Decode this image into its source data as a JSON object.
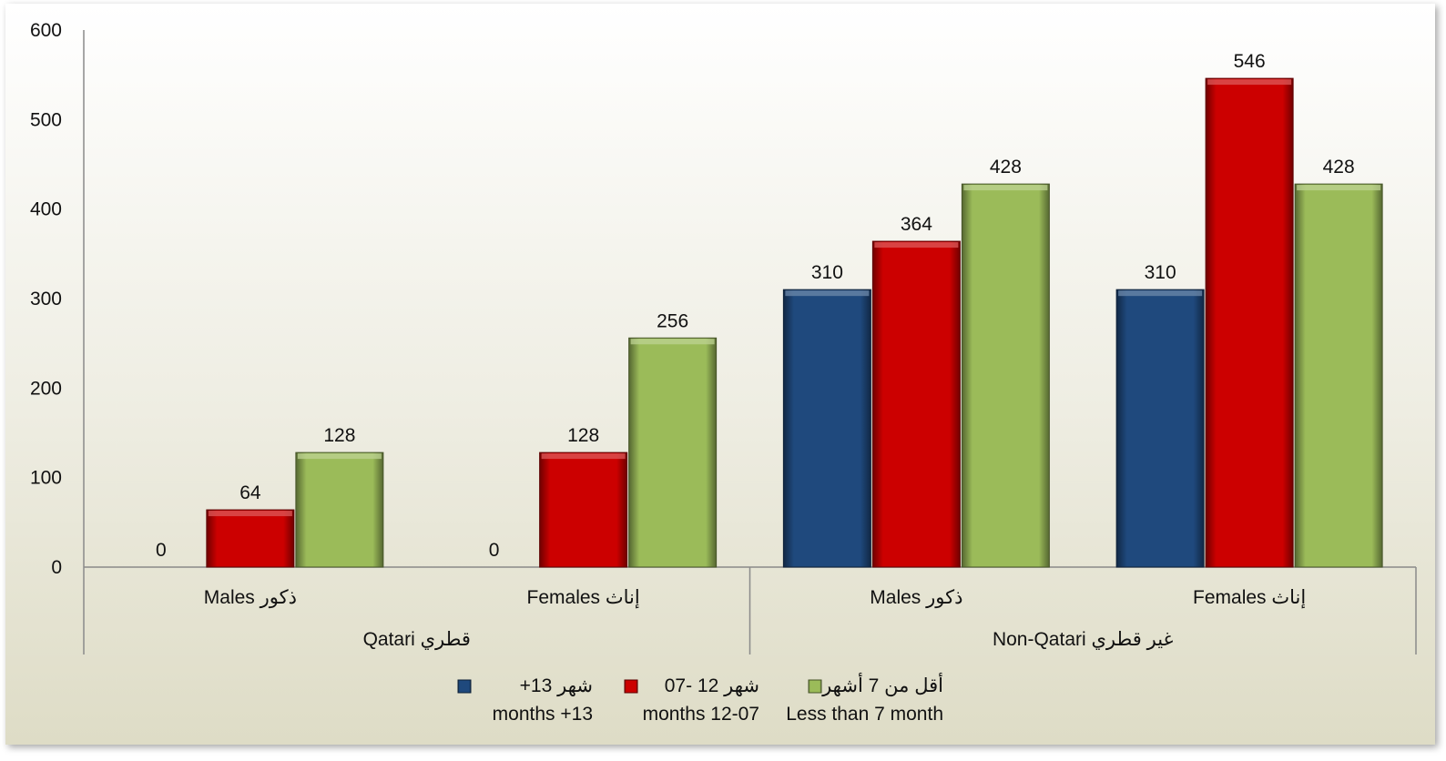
{
  "chart_data": {
    "type": "bar",
    "groups": [
      {
        "label": "Qatari قطري",
        "categories": [
          "Males ذكور",
          "Females إناث"
        ]
      },
      {
        "label": "Non-Qatari غير قطري",
        "categories": [
          "Males ذكور",
          "Females إناث"
        ]
      }
    ],
    "categories": [
      "Males ذكور",
      "Females إناث",
      "Males ذكور",
      "Females إناث"
    ],
    "series": [
      {
        "name": "+13 months",
        "legend_ar": "+13 شهر",
        "legend_en": "months +13",
        "color": "#1f497d",
        "values": [
          0,
          0,
          310,
          310
        ]
      },
      {
        "name": "07-12 months",
        "legend_ar": "07- 12 شهر",
        "legend_en": "months 12-07",
        "color": "#cc0000",
        "values": [
          64,
          128,
          364,
          546
        ]
      },
      {
        "name": "Less than 7 month",
        "legend_ar": "أقل من 7 أشهر",
        "legend_en": "Less than 7 month",
        "color": "#9bbb59",
        "values": [
          128,
          256,
          428,
          428
        ]
      }
    ],
    "yticks": [
      "0",
      "100",
      "200",
      "300",
      "400",
      "500",
      "600"
    ],
    "ylim": [
      0,
      600
    ],
    "data_labels": true,
    "grid": false,
    "legend_position": "bottom"
  }
}
